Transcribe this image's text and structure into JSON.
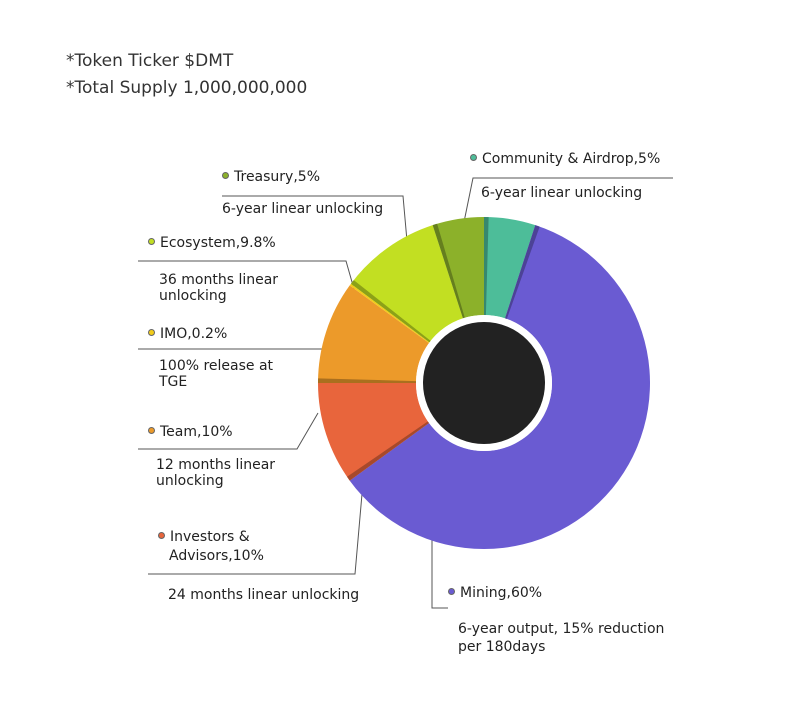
{
  "header": {
    "ticker": "*Token Ticker $DMT",
    "supply": "*Total Supply 1,000,000,000"
  },
  "colors": {
    "mining": "#6a5bd2",
    "investors": "#e8653c",
    "team": "#ec9a2a",
    "imo": "#f2cc1a",
    "ecosystem": "#c2df22",
    "treasury": "#8cb12a",
    "community": "#4dbd99",
    "center": "#222222"
  },
  "chart_data": {
    "type": "donut",
    "categories": [
      "Community & Airdrop",
      "Mining",
      "Investors & Advisors",
      "Team",
      "IMO",
      "Ecosystem",
      "Treasury"
    ],
    "values": [
      5,
      60,
      10,
      10,
      0.2,
      9.8,
      5
    ],
    "unit": "%",
    "slices": [
      {
        "key": "community",
        "name": "Community & Airdrop,5%",
        "value": 5,
        "note": "6-year linear unlocking"
      },
      {
        "key": "mining",
        "name": "Mining,60%",
        "value": 60,
        "note": "6-year output, 15% reduction per 180days"
      },
      {
        "key": "investors",
        "name": "Investors & Advisors,10%",
        "value": 10,
        "note": "24 months linear unlocking"
      },
      {
        "key": "team",
        "name": "Team,10%",
        "value": 10,
        "note": "12 months linear unlocking"
      },
      {
        "key": "imo",
        "name": "IMO,0.2%",
        "value": 0.2,
        "note": "100% release at TGE"
      },
      {
        "key": "ecosystem",
        "name": "Ecosystem,9.8%",
        "value": 9.8,
        "note": "36 months linear unlocking"
      },
      {
        "key": "treasury",
        "name": "Treasury,5%",
        "value": 5,
        "note": "6-year linear unlocking"
      }
    ]
  },
  "labels": {
    "community_title": "Community & Airdrop,5%",
    "community_note": "6-year linear unlocking",
    "treasury_title": "Treasury,5%",
    "treasury_note": "6-year linear unlocking",
    "ecosystem_title": "Ecosystem,9.8%",
    "ecosystem_note_1": "36 months linear",
    "ecosystem_note_2": "unlocking",
    "imo_title": "IMO,0.2%",
    "imo_note_1": "100% release at",
    "imo_note_2": "TGE",
    "team_title": "Team,10%",
    "team_note_1": "12 months linear",
    "team_note_2": "unlocking",
    "investors_title_1": "Investors &",
    "investors_title_2": "Advisors,10%",
    "investors_note": "24 months linear unlocking",
    "mining_title": "Mining,60%",
    "mining_note_1": "6-year output, 15% reduction",
    "mining_note_2": "per 180days"
  }
}
